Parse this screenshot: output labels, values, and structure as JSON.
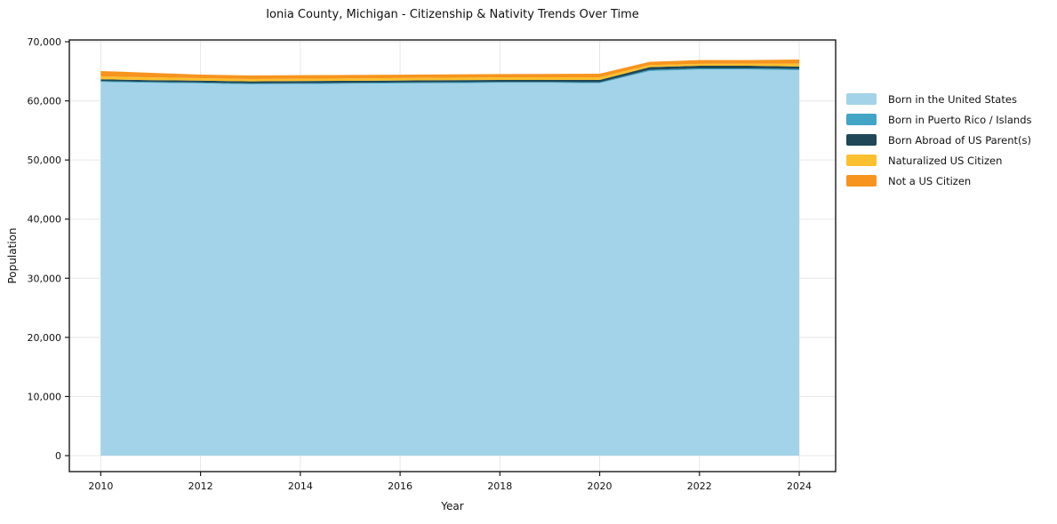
{
  "title": "Ionia County, Michigan - Citizenship &amp; Nativity Trends Over Time",
  "chart_data": {
    "type": "area",
    "stacked": true,
    "title": "Ionia County, Michigan - Citizenship & Nativity Trends Over Time",
    "xlabel": "Year",
    "ylabel": "Population",
    "x": [
      2010,
      2011,
      2012,
      2013,
      2014,
      2015,
      2016,
      2017,
      2018,
      2019,
      2020,
      2021,
      2022,
      2023,
      2024
    ],
    "series": [
      {
        "name": "Born in the United States",
        "color": "#a3d3e8",
        "values": [
          63200,
          63050,
          62950,
          62800,
          62850,
          62900,
          62950,
          63000,
          63050,
          63050,
          63000,
          65050,
          65300,
          65300,
          65200
        ]
      },
      {
        "name": "Born in Puerto Rico / Islands",
        "color": "#42a5c5",
        "values": [
          150,
          150,
          150,
          150,
          150,
          150,
          150,
          150,
          150,
          150,
          150,
          200,
          200,
          200,
          200
        ]
      },
      {
        "name": "Born Abroad of US Parent(s)",
        "color": "#1f4757",
        "values": [
          300,
          310,
          320,
          350,
          350,
          350,
          350,
          350,
          350,
          350,
          400,
          450,
          450,
          450,
          400
        ]
      },
      {
        "name": "Naturalized US Citizen",
        "color": "#fbc02d",
        "values": [
          500,
          460,
          420,
          400,
          400,
          400,
          410,
          420,
          430,
          440,
          450,
          350,
          320,
          350,
          500
        ]
      },
      {
        "name": "Not a US Citizen",
        "color": "#f7941e",
        "values": [
          900,
          780,
          610,
          600,
          590,
          580,
          560,
          550,
          550,
          560,
          600,
          550,
          630,
          600,
          700
        ]
      }
    ],
    "xticks": [
      2010,
      2012,
      2014,
      2016,
      2018,
      2020,
      2022,
      2024
    ],
    "yticks": [
      0,
      10000,
      20000,
      30000,
      40000,
      50000,
      60000,
      70000
    ],
    "ytick_labels": [
      "0",
      "10,000",
      "20,000",
      "30,000",
      "40,000",
      "50,000",
      "60,000",
      "70,000"
    ],
    "xlim_display": [
      2009.37,
      2024.73
    ],
    "ylim_display": [
      -2700,
      70300
    ],
    "grid": true,
    "legend_position": "right-outside",
    "colors": {
      "grid": "#e7e7e7",
      "spine": "#1a1a1a",
      "tick_text": "#111111",
      "background": "#ffffff"
    }
  }
}
